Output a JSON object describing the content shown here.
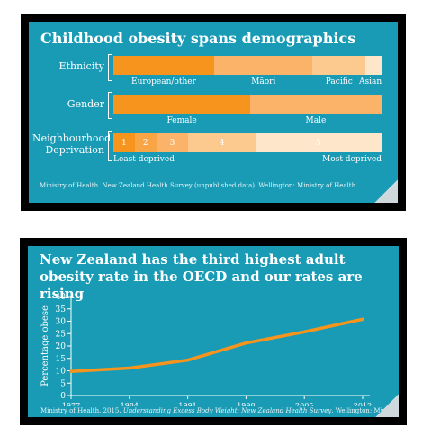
{
  "chart_data": [
    {
      "type": "bar",
      "title": "Childhood obesity spans demographics",
      "source": "Ministry of Health. New Zealand Health Survey (unpublished data). Wellington: Ministry of Health.",
      "rows": [
        {
          "label": "Ethnicity",
          "segments": [
            {
              "name": "European/other",
              "value": 38,
              "color": "#f7941d"
            },
            {
              "name": "Māori",
              "value": 37,
              "color": "#fbb36a"
            },
            {
              "name": "Pacific",
              "value": 20,
              "color": "#fcc98e"
            },
            {
              "name": "Asian",
              "value": 6,
              "color": "#fde6c9"
            }
          ]
        },
        {
          "label": "Gender",
          "segments": [
            {
              "name": "Female",
              "value": 51,
              "color": "#f7941d"
            },
            {
              "name": "Male",
              "value": 49,
              "color": "#fbb36a"
            }
          ]
        },
        {
          "label": "Neighbourhood Deprivation",
          "segments": [
            {
              "name": "1",
              "value": 8,
              "color": "#f7941d"
            },
            {
              "name": "2",
              "value": 8,
              "color": "#f9a445"
            },
            {
              "name": "3",
              "value": 12,
              "color": "#fbb36a"
            },
            {
              "name": "4",
              "value": 25,
              "color": "#fcc98e"
            },
            {
              "name": "5",
              "value": 47,
              "color": "#fde6c9"
            }
          ],
          "end_labels": [
            "Least deprived",
            "Most deprived"
          ]
        }
      ]
    },
    {
      "type": "line",
      "title": "New Zealand has the third highest adult obesity rate in the OECD and our rates are rising",
      "ylabel": "Percentage obese",
      "ylim": [
        0,
        40
      ],
      "yticks": [
        0,
        5,
        10,
        15,
        20,
        25,
        30,
        35,
        40
      ],
      "x": [
        1977,
        1984,
        1991,
        1998,
        2005,
        2012
      ],
      "series": [
        {
          "values": [
            9.7,
            11.1,
            14.3,
            21.2,
            25.7,
            30.8
          ],
          "color": "#f7941d"
        }
      ],
      "source_pre": "Ministry of Health. 2015. ",
      "source_italic": "Understanding Excess Body Weight: New Zealand Health Survey",
      "source_post": ". Wellington: Ministry of Health."
    }
  ]
}
